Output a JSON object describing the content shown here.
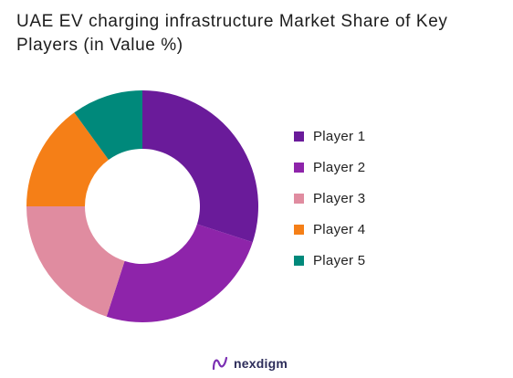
{
  "chart_data": {
    "type": "pie",
    "variant": "donut",
    "title": "UAE EV charging infrastructure Market Share of Key Players (in Value %)",
    "categories": [
      "Player 1",
      "Player 2",
      "Player 3",
      "Player 4",
      "Player 5"
    ],
    "values": [
      30,
      25,
      20,
      15,
      10
    ],
    "colors": [
      "#6a1b9a",
      "#8e24aa",
      "#e08ca0",
      "#f57f17",
      "#00897b"
    ],
    "legend_position": "right"
  },
  "brand": {
    "name": "nexdigm"
  }
}
